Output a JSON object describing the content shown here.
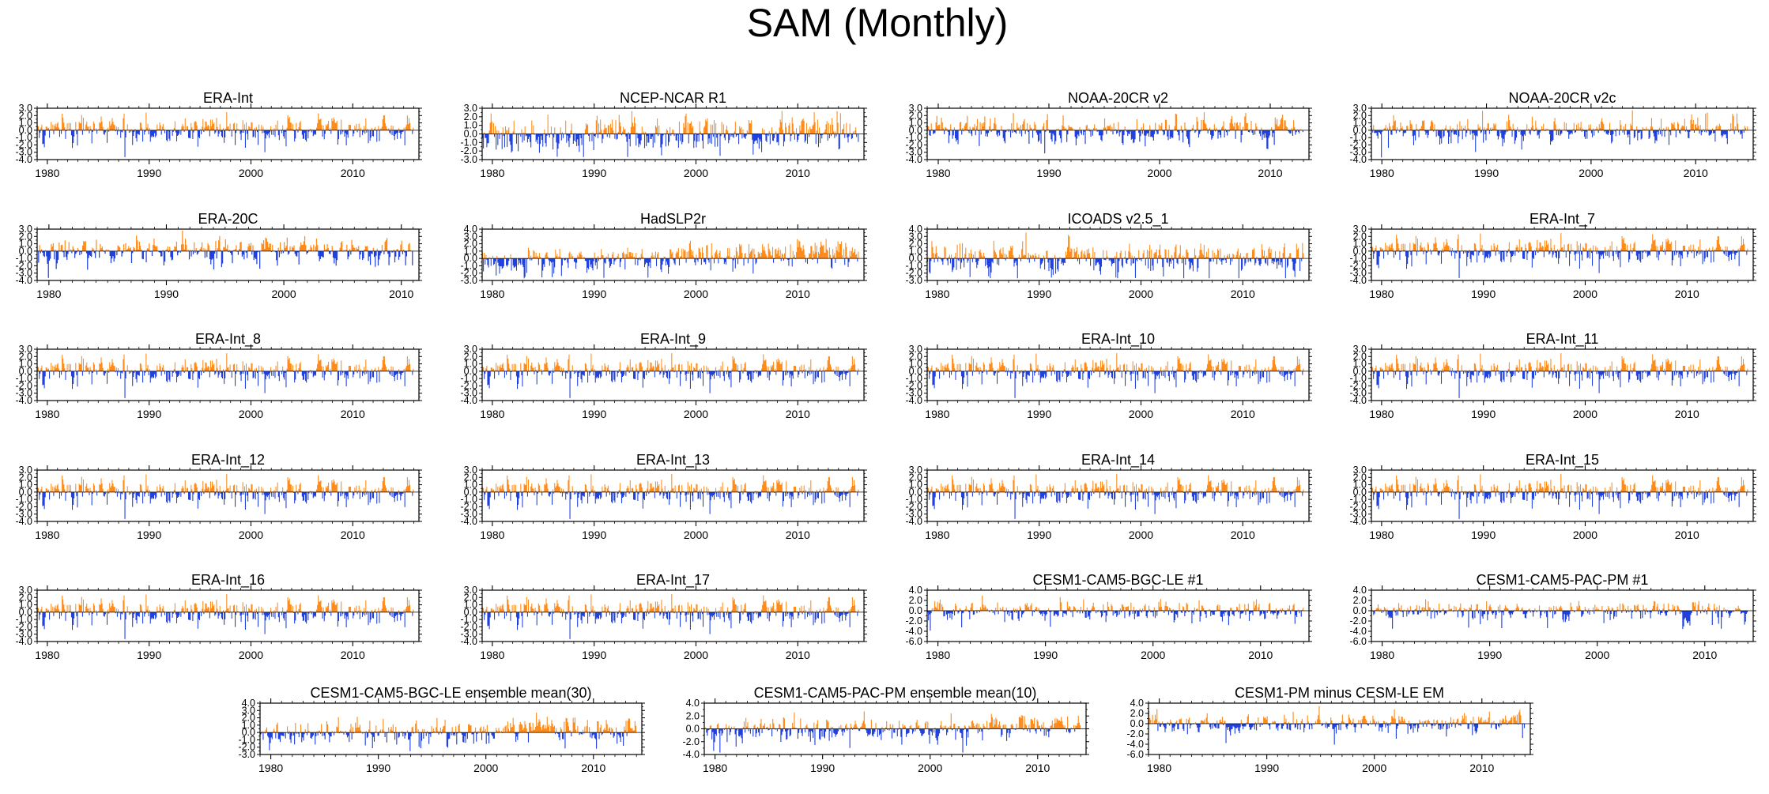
{
  "figure": {
    "title": "SAM (Monthly)"
  },
  "colors": {
    "positive": "#ff8c1a",
    "negative": "#2040e0",
    "axis": "#000000",
    "zero_line": "#000000"
  },
  "chart_data": [
    {
      "type": "bar",
      "title": "ERA-Int",
      "x_start": 1979.0,
      "x_end": 2015.99,
      "xlim": [
        1979,
        2016.5
      ],
      "xticks": [
        1980,
        1990,
        2000,
        2010
      ],
      "ylim": [
        -4.0,
        3.0
      ],
      "yticks": [
        -4.0,
        -3.0,
        -2.0,
        -1.0,
        0.0,
        1.0,
        2.0,
        3.0
      ],
      "ytick_labels": [
        "-4.0",
        "-3.0",
        "-2.0",
        "-1.0",
        "0.0",
        "1.0",
        "2.0",
        "3.0"
      ],
      "n_months": 444,
      "amplitude": 1.0,
      "trend": 0.0,
      "seed": 7
    },
    {
      "type": "bar",
      "title": "NCEP-NCAR R1",
      "x_start": 1979.0,
      "x_end": 2015.99,
      "xlim": [
        1979,
        2016.5
      ],
      "xticks": [
        1980,
        1990,
        2000,
        2010
      ],
      "ylim": [
        -3.0,
        3.0
      ],
      "yticks": [
        -3.0,
        -2.0,
        -1.0,
        0.0,
        1.0,
        2.0,
        3.0
      ],
      "ytick_labels": [
        "-3.0",
        "-2.0",
        "-1.0",
        "0.0",
        "1.0",
        "2.0",
        "3.0"
      ],
      "n_months": 444,
      "amplitude": 1.05,
      "trend": 0.35,
      "seed": 11
    },
    {
      "type": "bar",
      "title": "NOAA-20CR v2",
      "x_start": 1979.0,
      "x_end": 2012.99,
      "xlim": [
        1979,
        2013.5
      ],
      "xticks": [
        1980,
        1990,
        2000,
        2010
      ],
      "ylim": [
        -4.0,
        3.0
      ],
      "yticks": [
        -4.0,
        -3.0,
        -2.0,
        -1.0,
        0.0,
        1.0,
        2.0,
        3.0
      ],
      "ytick_labels": [
        "-4.0",
        "-3.0",
        "-2.0",
        "-1.0",
        "0.0",
        "1.0",
        "2.0",
        "3.0"
      ],
      "n_months": 408,
      "amplitude": 1.0,
      "trend": 0.0,
      "seed": 13
    },
    {
      "type": "bar",
      "title": "NOAA-20CR v2c",
      "x_start": 1979.0,
      "x_end": 2014.99,
      "xlim": [
        1979,
        2015.5
      ],
      "xticks": [
        1980,
        1990,
        2000,
        2010
      ],
      "ylim": [
        -4.0,
        3.0
      ],
      "yticks": [
        -4.0,
        -3.0,
        -2.0,
        -1.0,
        0.0,
        1.0,
        2.0,
        3.0
      ],
      "ytick_labels": [
        "-4.0",
        "-3.0",
        "-2.0",
        "-1.0",
        "0.0",
        "1.0",
        "2.0",
        "3.0"
      ],
      "n_months": 432,
      "amplitude": 1.0,
      "trend": 0.0,
      "seed": 17
    },
    {
      "type": "bar",
      "title": "ERA-20C",
      "x_start": 1979.0,
      "x_end": 2010.99,
      "xlim": [
        1979,
        2011.5
      ],
      "xticks": [
        1980,
        1990,
        2000,
        2010
      ],
      "ylim": [
        -4.0,
        3.0
      ],
      "yticks": [
        -4.0,
        -3.0,
        -2.0,
        -1.0,
        0.0,
        1.0,
        2.0,
        3.0
      ],
      "ytick_labels": [
        "-4.0",
        "-3.0",
        "-2.0",
        "-1.0",
        "0.0",
        "1.0",
        "2.0",
        "3.0"
      ],
      "n_months": 384,
      "amplitude": 1.0,
      "trend": 0.0,
      "seed": 19
    },
    {
      "type": "bar",
      "title": "HadSLP2r",
      "x_start": 1979.0,
      "x_end": 2015.99,
      "xlim": [
        1979,
        2016.5
      ],
      "xticks": [
        1980,
        1990,
        2000,
        2010
      ],
      "ylim": [
        -3.0,
        4.0
      ],
      "yticks": [
        -3.0,
        -2.0,
        -1.0,
        0.0,
        1.0,
        2.0,
        3.0,
        4.0
      ],
      "ytick_labels": [
        "-3.0",
        "-2.0",
        "-1.0",
        "0.0",
        "1.0",
        "2.0",
        "3.0",
        "4.0"
      ],
      "n_months": 444,
      "amplitude": 0.9,
      "trend": 1.4,
      "seed": 23
    },
    {
      "type": "bar",
      "title": "ICOADS v2.5_1",
      "x_start": 1979.0,
      "x_end": 2015.99,
      "xlim": [
        1979,
        2016.5
      ],
      "xticks": [
        1980,
        1990,
        2000,
        2010
      ],
      "ylim": [
        -3.0,
        4.0
      ],
      "yticks": [
        -3.0,
        -2.0,
        -1.0,
        0.0,
        1.0,
        2.0,
        3.0,
        4.0
      ],
      "ytick_labels": [
        "-3.0",
        "-2.0",
        "-1.0",
        "0.0",
        "1.0",
        "2.0",
        "3.0",
        "4.0"
      ],
      "n_months": 444,
      "amplitude": 1.15,
      "trend": 0.0,
      "seed": 29
    },
    {
      "type": "bar",
      "title": "ERA-Int_7",
      "x_start": 1979.0,
      "x_end": 2015.99,
      "xlim": [
        1979,
        2016.5
      ],
      "xticks": [
        1980,
        1990,
        2000,
        2010
      ],
      "ylim": [
        -4.0,
        3.0
      ],
      "yticks": [
        -4.0,
        -3.0,
        -2.0,
        -1.0,
        0.0,
        1.0,
        2.0,
        3.0
      ],
      "ytick_labels": [
        "-4.0",
        "-3.0",
        "-2.0",
        "-1.0",
        "0.0",
        "1.0",
        "2.0",
        "3.0"
      ],
      "n_months": 444,
      "amplitude": 1.0,
      "trend": 0.0,
      "seed": 7
    },
    {
      "type": "bar",
      "title": "ERA-Int_8",
      "x_start": 1979.0,
      "x_end": 2015.99,
      "xlim": [
        1979,
        2016.5
      ],
      "xticks": [
        1980,
        1990,
        2000,
        2010
      ],
      "ylim": [
        -4.0,
        3.0
      ],
      "yticks": [
        -4.0,
        -3.0,
        -2.0,
        -1.0,
        0.0,
        1.0,
        2.0,
        3.0
      ],
      "ytick_labels": [
        "-4.0",
        "-3.0",
        "-2.0",
        "-1.0",
        "0.0",
        "1.0",
        "2.0",
        "3.0"
      ],
      "n_months": 444,
      "amplitude": 1.0,
      "trend": 0.0,
      "seed": 7
    },
    {
      "type": "bar",
      "title": "ERA-Int_9",
      "x_start": 1979.0,
      "x_end": 2015.99,
      "xlim": [
        1979,
        2016.5
      ],
      "xticks": [
        1980,
        1990,
        2000,
        2010
      ],
      "ylim": [
        -4.0,
        3.0
      ],
      "yticks": [
        -4.0,
        -3.0,
        -2.0,
        -1.0,
        0.0,
        1.0,
        2.0,
        3.0
      ],
      "ytick_labels": [
        "-4.0",
        "-3.0",
        "-2.0",
        "-1.0",
        "0.0",
        "1.0",
        "2.0",
        "3.0"
      ],
      "n_months": 444,
      "amplitude": 1.0,
      "trend": 0.0,
      "seed": 7
    },
    {
      "type": "bar",
      "title": "ERA-Int_10",
      "x_start": 1979.0,
      "x_end": 2015.99,
      "xlim": [
        1979,
        2016.5
      ],
      "xticks": [
        1980,
        1990,
        2000,
        2010
      ],
      "ylim": [
        -4.0,
        3.0
      ],
      "yticks": [
        -4.0,
        -3.0,
        -2.0,
        -1.0,
        0.0,
        1.0,
        2.0,
        3.0
      ],
      "ytick_labels": [
        "-4.0",
        "-3.0",
        "-2.0",
        "-1.0",
        "0.0",
        "1.0",
        "2.0",
        "3.0"
      ],
      "n_months": 444,
      "amplitude": 1.0,
      "trend": 0.0,
      "seed": 7
    },
    {
      "type": "bar",
      "title": "ERA-Int_11",
      "x_start": 1979.0,
      "x_end": 2015.99,
      "xlim": [
        1979,
        2016.5
      ],
      "xticks": [
        1980,
        1990,
        2000,
        2010
      ],
      "ylim": [
        -4.0,
        3.0
      ],
      "yticks": [
        -4.0,
        -3.0,
        -2.0,
        -1.0,
        0.0,
        1.0,
        2.0,
        3.0
      ],
      "ytick_labels": [
        "-4.0",
        "-3.0",
        "-2.0",
        "-1.0",
        "0.0",
        "1.0",
        "2.0",
        "3.0"
      ],
      "n_months": 444,
      "amplitude": 1.0,
      "trend": 0.0,
      "seed": 7
    },
    {
      "type": "bar",
      "title": "ERA-Int_12",
      "x_start": 1979.0,
      "x_end": 2015.99,
      "xlim": [
        1979,
        2016.5
      ],
      "xticks": [
        1980,
        1990,
        2000,
        2010
      ],
      "ylim": [
        -4.0,
        3.0
      ],
      "yticks": [
        -4.0,
        -3.0,
        -2.0,
        -1.0,
        0.0,
        1.0,
        2.0,
        3.0
      ],
      "ytick_labels": [
        "-4.0",
        "-3.0",
        "-2.0",
        "-1.0",
        "0.0",
        "1.0",
        "2.0",
        "3.0"
      ],
      "n_months": 444,
      "amplitude": 1.0,
      "trend": 0.0,
      "seed": 7
    },
    {
      "type": "bar",
      "title": "ERA-Int_13",
      "x_start": 1979.0,
      "x_end": 2015.99,
      "xlim": [
        1979,
        2016.5
      ],
      "xticks": [
        1980,
        1990,
        2000,
        2010
      ],
      "ylim": [
        -4.0,
        3.0
      ],
      "yticks": [
        -4.0,
        -3.0,
        -2.0,
        -1.0,
        0.0,
        1.0,
        2.0,
        3.0
      ],
      "ytick_labels": [
        "-4.0",
        "-3.0",
        "-2.0",
        "-1.0",
        "0.0",
        "1.0",
        "2.0",
        "3.0"
      ],
      "n_months": 444,
      "amplitude": 1.0,
      "trend": 0.0,
      "seed": 7
    },
    {
      "type": "bar",
      "title": "ERA-Int_14",
      "x_start": 1979.0,
      "x_end": 2015.99,
      "xlim": [
        1979,
        2016.5
      ],
      "xticks": [
        1980,
        1990,
        2000,
        2010
      ],
      "ylim": [
        -4.0,
        3.0
      ],
      "yticks": [
        -4.0,
        -3.0,
        -2.0,
        -1.0,
        0.0,
        1.0,
        2.0,
        3.0
      ],
      "ytick_labels": [
        "-4.0",
        "-3.0",
        "-2.0",
        "-1.0",
        "0.0",
        "1.0",
        "2.0",
        "3.0"
      ],
      "n_months": 444,
      "amplitude": 1.0,
      "trend": 0.0,
      "seed": 7
    },
    {
      "type": "bar",
      "title": "ERA-Int_15",
      "x_start": 1979.0,
      "x_end": 2015.99,
      "xlim": [
        1979,
        2016.5
      ],
      "xticks": [
        1980,
        1990,
        2000,
        2010
      ],
      "ylim": [
        -4.0,
        3.0
      ],
      "yticks": [
        -4.0,
        -3.0,
        -2.0,
        -1.0,
        0.0,
        1.0,
        2.0,
        3.0
      ],
      "ytick_labels": [
        "-4.0",
        "-3.0",
        "-2.0",
        "-1.0",
        "0.0",
        "1.0",
        "2.0",
        "3.0"
      ],
      "n_months": 444,
      "amplitude": 1.0,
      "trend": 0.0,
      "seed": 7
    },
    {
      "type": "bar",
      "title": "ERA-Int_16",
      "x_start": 1979.0,
      "x_end": 2015.99,
      "xlim": [
        1979,
        2016.5
      ],
      "xticks": [
        1980,
        1990,
        2000,
        2010
      ],
      "ylim": [
        -4.0,
        3.0
      ],
      "yticks": [
        -4.0,
        -3.0,
        -2.0,
        -1.0,
        0.0,
        1.0,
        2.0,
        3.0
      ],
      "ytick_labels": [
        "-4.0",
        "-3.0",
        "-2.0",
        "-1.0",
        "0.0",
        "1.0",
        "2.0",
        "3.0"
      ],
      "n_months": 444,
      "amplitude": 1.0,
      "trend": 0.0,
      "seed": 7
    },
    {
      "type": "bar",
      "title": "ERA-Int_17",
      "x_start": 1979.0,
      "x_end": 2015.99,
      "xlim": [
        1979,
        2016.5
      ],
      "xticks": [
        1980,
        1990,
        2000,
        2010
      ],
      "ylim": [
        -4.0,
        3.0
      ],
      "yticks": [
        -4.0,
        -3.0,
        -2.0,
        -1.0,
        0.0,
        1.0,
        2.0,
        3.0
      ],
      "ytick_labels": [
        "-4.0",
        "-3.0",
        "-2.0",
        "-1.0",
        "0.0",
        "1.0",
        "2.0",
        "3.0"
      ],
      "n_months": 444,
      "amplitude": 1.0,
      "trend": 0.0,
      "seed": 7
    },
    {
      "type": "bar",
      "title": "CESM1-CAM5-BGC-LE #1",
      "x_start": 1979.0,
      "x_end": 2013.99,
      "xlim": [
        1979,
        2014.5
      ],
      "xticks": [
        1980,
        1990,
        2000,
        2010
      ],
      "ylim": [
        -6.0,
        4.0
      ],
      "yticks": [
        -6.0,
        -4.0,
        -2.0,
        0.0,
        2.0,
        4.0
      ],
      "ytick_labels": [
        "-6.0",
        "-4.0",
        "-2.0",
        "0.0",
        "2.0",
        "4.0"
      ],
      "n_months": 420,
      "amplitude": 1.0,
      "trend": 0.0,
      "seed": 31
    },
    {
      "type": "bar",
      "title": "CESM1-CAM5-PAC-PM #1",
      "x_start": 1979.0,
      "x_end": 2013.99,
      "xlim": [
        1979,
        2014.5
      ],
      "xticks": [
        1980,
        1990,
        2000,
        2010
      ],
      "ylim": [
        -6.0,
        4.0
      ],
      "yticks": [
        -6.0,
        -4.0,
        -2.0,
        0.0,
        2.0,
        4.0
      ],
      "ytick_labels": [
        "-6.0",
        "-4.0",
        "-2.0",
        "0.0",
        "2.0",
        "4.0"
      ],
      "n_months": 420,
      "amplitude": 1.0,
      "trend": 0.0,
      "seed": 37
    },
    {
      "type": "bar",
      "title": "CESM1-CAM5-BGC-LE ensemble mean(30)",
      "x_start": 1979.0,
      "x_end": 2013.99,
      "xlim": [
        1979,
        2014.5
      ],
      "xticks": [
        1980,
        1990,
        2000,
        2010
      ],
      "ylim": [
        -3.0,
        4.0
      ],
      "yticks": [
        -3.0,
        -2.0,
        -1.0,
        0.0,
        1.0,
        2.0,
        3.0,
        4.0
      ],
      "ytick_labels": [
        "-3.0",
        "-2.0",
        "-1.0",
        "0.0",
        "1.0",
        "2.0",
        "3.0",
        "4.0"
      ],
      "n_months": 420,
      "amplitude": 0.9,
      "trend": 0.6,
      "seed": 41
    },
    {
      "type": "bar",
      "title": "CESM1-CAM5-PAC-PM ensemble mean(10)",
      "x_start": 1979.0,
      "x_end": 2013.99,
      "xlim": [
        1979,
        2014.5
      ],
      "xticks": [
        1980,
        1990,
        2000,
        2010
      ],
      "ylim": [
        -4.0,
        4.0
      ],
      "yticks": [
        -4.0,
        -2.0,
        0.0,
        2.0,
        4.0
      ],
      "ytick_labels": [
        "-4.0",
        "-2.0",
        "0.0",
        "2.0",
        "4.0"
      ],
      "n_months": 420,
      "amplitude": 1.0,
      "trend": 0.7,
      "seed": 43
    },
    {
      "type": "bar",
      "title": "CESM1-PM minus CESM-LE EM",
      "x_start": 1979.0,
      "x_end": 2013.99,
      "xlim": [
        1979,
        2014.5
      ],
      "xticks": [
        1980,
        1990,
        2000,
        2010
      ],
      "ylim": [
        -6.0,
        4.0
      ],
      "yticks": [
        -6.0,
        -4.0,
        -2.0,
        0.0,
        2.0,
        4.0
      ],
      "ytick_labels": [
        "-6.0",
        "-4.0",
        "-2.0",
        "0.0",
        "2.0",
        "4.0"
      ],
      "n_months": 420,
      "amplitude": 1.0,
      "trend": 0.3,
      "seed": 47
    }
  ]
}
